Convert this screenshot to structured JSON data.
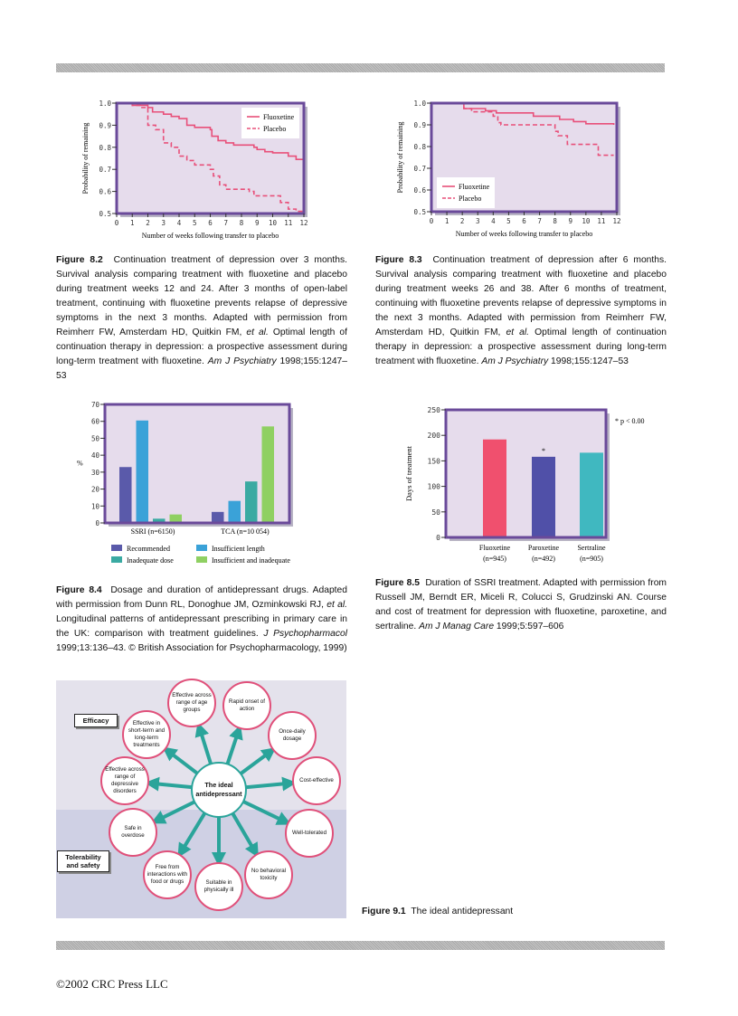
{
  "figures": {
    "f82": {
      "caption_label": "Figure 8.2",
      "caption_text": "Continuation treatment of depression over 3 months. Survival analysis comparing treatment with fluoxetine and placebo during treatment weeks 12 and 24. After 3 months of open-label treatment, continuing with fluoxetine prevents relapse of depressive symptoms in the next 3 months. Adapted with permission from Reimherr FW, Amsterdam HD, Quitkin FM, ",
      "caption_etal": "et al.",
      "caption_text2": " Optimal length of continuation therapy in depression: a prospective assessment during long-term treatment with fluoxetine. ",
      "caption_journal": "Am J Psychiatry",
      "caption_ref": " 1998;155:1247–53"
    },
    "f83": {
      "caption_label": "Figure 8.3",
      "caption_text": "Continuation treatment of depression after 6 months. Survival analysis comparing treatment with fluoxetine and placebo during treatment weeks 26 and 38. After 6 months of treatment, continuing with fluoxetine prevents relapse of depressive symptoms in the next 3 months. Adapted with permission from Reimherr FW, Amsterdam HD, Quitkin FM, ",
      "caption_etal": "et al.",
      "caption_text2": " Optimal length of continuation therapy in depression: a prospective assessment during long-term treatment with fluoxetine. ",
      "caption_journal": "Am J Psychiatry",
      "caption_ref": " 1998;155:1247–53"
    },
    "f84": {
      "caption_label": "Figure 8.4",
      "caption_text": "Dosage and duration of antidepressant drugs. Adapted with permission from Dunn RL, Donoghue JM, Ozminkowski RJ, ",
      "caption_etal": "et al.",
      "caption_text2": " Longitudinal patterns of antidepressant prescribing in primary care in the UK: comparison with treatment guidelines. ",
      "caption_journal": "J Psychopharmacol",
      "caption_ref": " 1999;13:136–43. © British Association for Psychopharmacology, 1999)"
    },
    "f85": {
      "caption_label": "Figure 8.5",
      "caption_text": "Duration of SSRI treatment. Adapted with permission from Russell JM, Berndt ER, Miceli R, Colucci S, Grudzinski AN. Course and cost of treatment for depression with fluoxetine, paroxetine, and sertraline. ",
      "caption_journal": "Am J Manag Care",
      "caption_ref": " 1999;5:597–606"
    },
    "f91": {
      "caption_label": "Figure 9.1",
      "caption_text": "The ideal antidepressant",
      "center": "The ideal antidepressant",
      "efficacy_label": "Efficacy",
      "tolerability_label": "Tolerability and safety",
      "nodes": [
        "Effective across range of age groups",
        "Rapid onset of action",
        "Effective in short-term and long-term treatments",
        "Once-daily dosage",
        "Effective across range of depressive disorders",
        "Cost-effective",
        "Safe in overdose",
        "Well-tolerated",
        "Free from interactions with food or drugs",
        "No behavioral toxicity",
        "Suitable in physically ill"
      ],
      "colors": {
        "arrow": "#2aa49a",
        "circle_border": "#e0507a"
      }
    }
  },
  "footer": "©2002 CRC Press LLC",
  "chart_data": [
    {
      "id": "f82",
      "type": "line",
      "step": true,
      "xlabel": "Number of weeks following transfer to placebo",
      "ylabel": "Probability of remaining",
      "xlim": [
        0,
        12
      ],
      "ylim": [
        0.5,
        1.0
      ],
      "xticks": [
        "0",
        "1",
        "2",
        "3",
        "4",
        "5",
        "6",
        "7",
        "8",
        "9",
        "10",
        "11",
        "12"
      ],
      "yticks": [
        "0.5",
        "0.6",
        "0.7",
        "0.8",
        "0.9",
        "1.0"
      ],
      "legend": "top-right",
      "series": [
        {
          "name": "Fluoxetine",
          "style": "solid",
          "color": "#e8507a",
          "points": [
            [
              0,
              1.0
            ],
            [
              1,
              0.99
            ],
            [
              2,
              0.98
            ],
            [
              2.3,
              0.96
            ],
            [
              3,
              0.95
            ],
            [
              3.5,
              0.94
            ],
            [
              4,
              0.93
            ],
            [
              4.5,
              0.9
            ],
            [
              5,
              0.89
            ],
            [
              6,
              0.88
            ],
            [
              6.1,
              0.85
            ],
            [
              6.5,
              0.83
            ],
            [
              7,
              0.82
            ],
            [
              7.5,
              0.81
            ],
            [
              8.8,
              0.8
            ],
            [
              9,
              0.79
            ],
            [
              9.5,
              0.78
            ],
            [
              10,
              0.775
            ],
            [
              11,
              0.76
            ],
            [
              11.5,
              0.745
            ],
            [
              12,
              0.72
            ]
          ]
        },
        {
          "name": "Placebo",
          "style": "dashed",
          "color": "#e8507a",
          "points": [
            [
              0,
              1.0
            ],
            [
              1,
              0.99
            ],
            [
              1.5,
              0.98
            ],
            [
              2,
              0.96
            ],
            [
              2,
              0.9
            ],
            [
              2.5,
              0.88
            ],
            [
              3,
              0.87
            ],
            [
              3,
              0.82
            ],
            [
              3.5,
              0.8
            ],
            [
              4,
              0.76
            ],
            [
              4.5,
              0.74
            ],
            [
              5,
              0.72
            ],
            [
              6,
              0.7
            ],
            [
              6.2,
              0.67
            ],
            [
              6.6,
              0.63
            ],
            [
              7,
              0.61
            ],
            [
              8.5,
              0.6
            ],
            [
              8.8,
              0.58
            ],
            [
              10.2,
              0.58
            ],
            [
              10.5,
              0.55
            ],
            [
              11,
              0.52
            ],
            [
              11.5,
              0.51
            ],
            [
              12,
              0.51
            ]
          ]
        }
      ]
    },
    {
      "id": "f83",
      "type": "line",
      "step": true,
      "xlabel": "Number of weeks following transfer to placebo",
      "ylabel": "Probability of remaining",
      "xlim": [
        0,
        12
      ],
      "ylim": [
        0.5,
        1.0
      ],
      "xticks": [
        "0",
        "1",
        "2",
        "3",
        "4",
        "5",
        "6",
        "7",
        "8",
        "9",
        "10",
        "11",
        "12"
      ],
      "yticks": [
        "0.5",
        "0.6",
        "0.7",
        "0.8",
        "0.9",
        "1.0"
      ],
      "legend": "bottom-left",
      "series": [
        {
          "name": "Fluoxetine",
          "style": "solid",
          "color": "#e8507a",
          "points": [
            [
              0,
              1.0
            ],
            [
              2.1,
              0.975
            ],
            [
              3.5,
              0.965
            ],
            [
              4.2,
              0.955
            ],
            [
              6.6,
              0.94
            ],
            [
              8.3,
              0.925
            ],
            [
              9.2,
              0.915
            ],
            [
              10,
              0.905
            ],
            [
              11.8,
              0.9
            ]
          ]
        },
        {
          "name": "Placebo",
          "style": "dashed",
          "color": "#e8507a",
          "points": [
            [
              0,
              1.0
            ],
            [
              2.1,
              0.975
            ],
            [
              2.6,
              0.96
            ],
            [
              4,
              0.94
            ],
            [
              4.3,
              0.91
            ],
            [
              4.5,
              0.9
            ],
            [
              8,
              0.87
            ],
            [
              8.2,
              0.85
            ],
            [
              8.8,
              0.81
            ],
            [
              10.8,
              0.76
            ],
            [
              11.8,
              0.76
            ]
          ]
        }
      ]
    },
    {
      "id": "f84",
      "type": "bar",
      "ylabel": "%",
      "ylim": [
        0,
        70
      ],
      "yticks": [
        "0",
        "10",
        "20",
        "30",
        "40",
        "50",
        "60",
        "70"
      ],
      "categories": [
        "SSRI (n=6150)",
        "TCA (n=10 054)"
      ],
      "legend": "bottom",
      "series": [
        {
          "name": "Recommended",
          "color": "#5a5aaa",
          "values": [
            33,
            6.5
          ]
        },
        {
          "name": "Insufficient length",
          "color": "#3aa2d8",
          "values": [
            60.5,
            13
          ]
        },
        {
          "name": "Inadequate dose",
          "color": "#3aaaa2",
          "values": [
            2.5,
            24.5
          ]
        },
        {
          "name": "Insufficient and inadequate",
          "color": "#8fd062",
          "values": [
            5,
            57
          ]
        }
      ]
    },
    {
      "id": "f85",
      "type": "bar",
      "ylabel": "Days of treatment",
      "ylim": [
        0,
        250
      ],
      "yticks": [
        "0",
        "50",
        "100",
        "150",
        "200",
        "250"
      ],
      "categories": [
        "Fluoxetine",
        "Paroxetine",
        "Sertraline"
      ],
      "category_n": [
        "(n=945)",
        "(n=492)",
        "(n=905)"
      ],
      "values": [
        192,
        158,
        166
      ],
      "colors": [
        "#f0506e",
        "#5050a8",
        "#40b8c0"
      ],
      "annotations": [
        "",
        "*",
        ""
      ],
      "note": "* p < 0.00"
    }
  ],
  "colors": {
    "plot_bg": "#e6dcec",
    "frame": "#6a4a9a",
    "shadow": "#b8b4c4"
  }
}
